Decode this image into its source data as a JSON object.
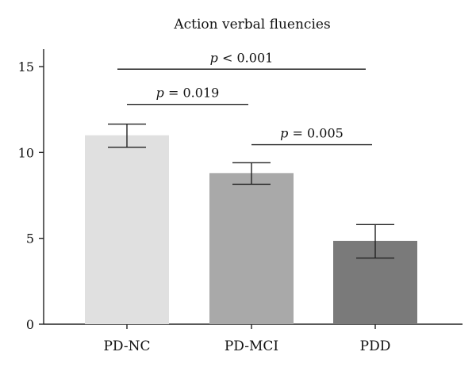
{
  "chart_data": {
    "type": "bar",
    "title": "Action verbal fluencies",
    "xlabel": "",
    "ylabel": "",
    "ylim": [
      0,
      16
    ],
    "yticks": [
      0,
      5,
      10,
      15
    ],
    "categories": [
      "PD-NC",
      "PD-MCI",
      "PDD"
    ],
    "values": [
      11.0,
      8.8,
      4.85
    ],
    "error_low": [
      10.3,
      8.15,
      3.85
    ],
    "error_high": [
      11.65,
      9.4,
      5.8
    ],
    "colors": [
      "#e0e0e0",
      "#a9a9a9",
      "#7a7a7a"
    ],
    "grid": false,
    "significance": [
      {
        "from": 0,
        "to": 2,
        "y": 14.85,
        "p": "p",
        "op": "<",
        "value": "0.001"
      },
      {
        "from": 0,
        "to": 1,
        "y": 12.8,
        "p": "p",
        "op": "=",
        "value": "0.019"
      },
      {
        "from": 1,
        "to": 2,
        "y": 10.45,
        "p": "p",
        "op": "=",
        "value": "0.005"
      }
    ]
  }
}
